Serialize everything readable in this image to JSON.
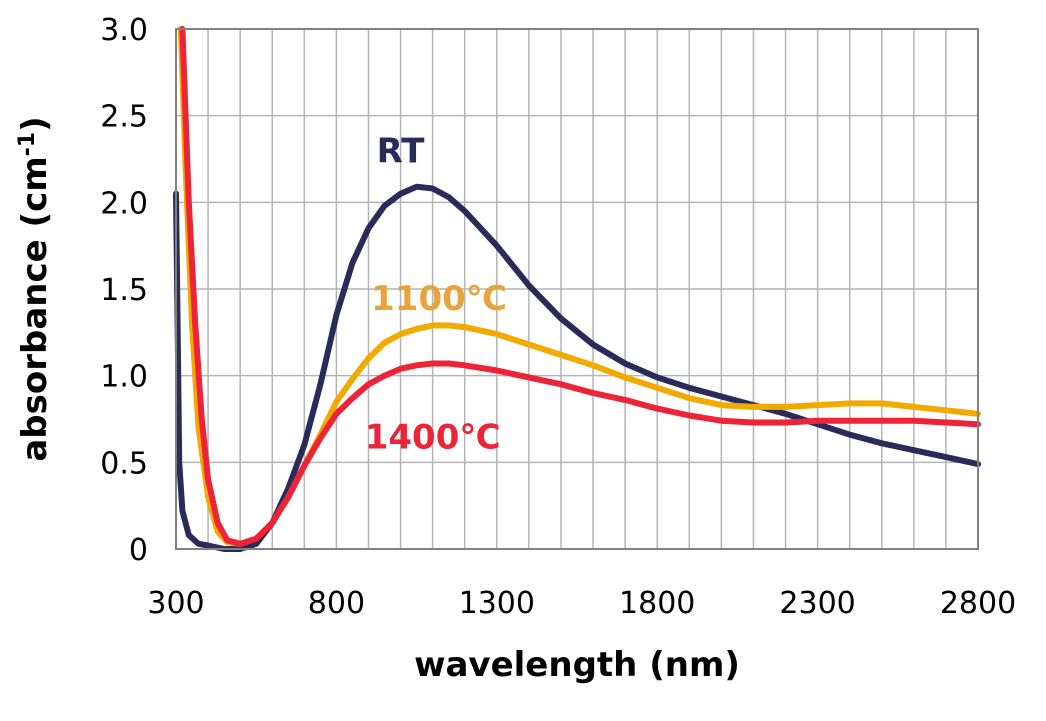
{
  "chart_data": {
    "type": "line",
    "title": "",
    "xlabel": "wavelength (nm)",
    "ylabel_main": "absorbance (cm",
    "ylabel_sup": "-1",
    "ylabel_close": ")",
    "xlim": [
      300,
      2800
    ],
    "ylim": [
      0,
      3.0
    ],
    "x_ticks": [
      300,
      800,
      1300,
      1800,
      2300,
      2800
    ],
    "x_tick_labels": [
      "300",
      "800",
      "1300",
      "1800",
      "2300",
      "2800"
    ],
    "y_ticks": [
      0,
      0.5,
      1.0,
      1.5,
      2.0,
      2.5,
      3.0
    ],
    "y_tick_labels": [
      "0",
      "0.5",
      "1.0",
      "1.5",
      "2.0",
      "2.5",
      "3.0"
    ],
    "x_minor_step": 100,
    "grid": true,
    "legend": "inline labels",
    "series": [
      {
        "name": "RT",
        "color": "#2b2b5a",
        "points": [
          [
            300,
            2.05
          ],
          [
            305,
            1.3
          ],
          [
            310,
            0.5
          ],
          [
            320,
            0.22
          ],
          [
            340,
            0.08
          ],
          [
            370,
            0.03
          ],
          [
            400,
            0.02
          ],
          [
            450,
            0.0
          ],
          [
            500,
            0.0
          ],
          [
            550,
            0.03
          ],
          [
            600,
            0.15
          ],
          [
            650,
            0.35
          ],
          [
            700,
            0.6
          ],
          [
            750,
            0.95
          ],
          [
            800,
            1.35
          ],
          [
            850,
            1.65
          ],
          [
            900,
            1.85
          ],
          [
            950,
            1.98
          ],
          [
            1000,
            2.05
          ],
          [
            1050,
            2.09
          ],
          [
            1100,
            2.08
          ],
          [
            1150,
            2.03
          ],
          [
            1200,
            1.95
          ],
          [
            1300,
            1.75
          ],
          [
            1400,
            1.52
          ],
          [
            1500,
            1.33
          ],
          [
            1600,
            1.18
          ],
          [
            1700,
            1.07
          ],
          [
            1800,
            0.99
          ],
          [
            1900,
            0.93
          ],
          [
            2000,
            0.88
          ],
          [
            2100,
            0.83
          ],
          [
            2200,
            0.78
          ],
          [
            2300,
            0.72
          ],
          [
            2400,
            0.66
          ],
          [
            2500,
            0.61
          ],
          [
            2600,
            0.57
          ],
          [
            2700,
            0.53
          ],
          [
            2800,
            0.49
          ]
        ]
      },
      {
        "name": "1100℃",
        "color": "#f2a900",
        "points": [
          [
            315,
            3.0
          ],
          [
            330,
            2.2
          ],
          [
            350,
            1.3
          ],
          [
            370,
            0.7
          ],
          [
            400,
            0.3
          ],
          [
            430,
            0.1
          ],
          [
            460,
            0.04
          ],
          [
            500,
            0.03
          ],
          [
            550,
            0.06
          ],
          [
            600,
            0.15
          ],
          [
            650,
            0.3
          ],
          [
            700,
            0.48
          ],
          [
            750,
            0.66
          ],
          [
            800,
            0.85
          ],
          [
            850,
            0.98
          ],
          [
            900,
            1.1
          ],
          [
            950,
            1.19
          ],
          [
            1000,
            1.24
          ],
          [
            1050,
            1.27
          ],
          [
            1100,
            1.29
          ],
          [
            1150,
            1.29
          ],
          [
            1200,
            1.28
          ],
          [
            1300,
            1.24
          ],
          [
            1400,
            1.18
          ],
          [
            1500,
            1.12
          ],
          [
            1600,
            1.06
          ],
          [
            1700,
            0.99
          ],
          [
            1800,
            0.93
          ],
          [
            1900,
            0.87
          ],
          [
            2000,
            0.83
          ],
          [
            2100,
            0.82
          ],
          [
            2200,
            0.82
          ],
          [
            2300,
            0.83
          ],
          [
            2400,
            0.84
          ],
          [
            2500,
            0.84
          ],
          [
            2600,
            0.82
          ],
          [
            2700,
            0.8
          ],
          [
            2800,
            0.78
          ]
        ]
      },
      {
        "name": "1400℃",
        "color": "#ee2337",
        "points": [
          [
            320,
            3.0
          ],
          [
            340,
            2.0
          ],
          [
            360,
            1.3
          ],
          [
            380,
            0.75
          ],
          [
            400,
            0.4
          ],
          [
            430,
            0.15
          ],
          [
            460,
            0.05
          ],
          [
            500,
            0.03
          ],
          [
            550,
            0.06
          ],
          [
            600,
            0.15
          ],
          [
            650,
            0.3
          ],
          [
            700,
            0.48
          ],
          [
            750,
            0.64
          ],
          [
            800,
            0.78
          ],
          [
            850,
            0.87
          ],
          [
            900,
            0.95
          ],
          [
            950,
            1.0
          ],
          [
            1000,
            1.04
          ],
          [
            1050,
            1.06
          ],
          [
            1100,
            1.07
          ],
          [
            1150,
            1.07
          ],
          [
            1200,
            1.06
          ],
          [
            1300,
            1.03
          ],
          [
            1400,
            0.99
          ],
          [
            1500,
            0.95
          ],
          [
            1600,
            0.9
          ],
          [
            1700,
            0.86
          ],
          [
            1800,
            0.81
          ],
          [
            1900,
            0.77
          ],
          [
            2000,
            0.74
          ],
          [
            2100,
            0.73
          ],
          [
            2200,
            0.73
          ],
          [
            2300,
            0.74
          ],
          [
            2400,
            0.74
          ],
          [
            2500,
            0.74
          ],
          [
            2600,
            0.74
          ],
          [
            2700,
            0.73
          ],
          [
            2800,
            0.72
          ]
        ]
      }
    ],
    "annotations": [
      {
        "text": "RT",
        "x": 1000,
        "y": 2.23,
        "color": "#2b2b5a"
      },
      {
        "text": "1100℃",
        "x": 1120,
        "y": 1.38,
        "color": "#e8a33a"
      },
      {
        "text": "1400℃",
        "x": 1100,
        "y": 0.58,
        "color": "#ee2337"
      }
    ]
  }
}
